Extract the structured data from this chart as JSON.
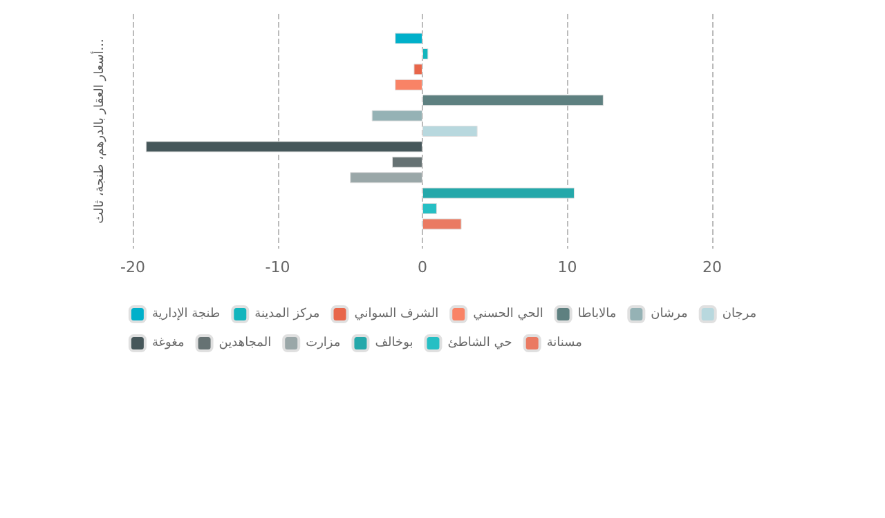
{
  "chart_data": {
    "type": "bar",
    "orientation": "horizontal",
    "ylabel": "أسعار العقار بالدرهم، طنجة، ثالث...",
    "categories": [
      null
    ],
    "series": [
      {
        "name": "طنجة الإدارية",
        "color": "#00b0ca",
        "values": [
          -1.9
        ]
      },
      {
        "name": "مركز المدينة",
        "color": "#13b5bd",
        "values": [
          0.4
        ]
      },
      {
        "name": "الشرف السواني",
        "color": "#e8664a",
        "values": [
          -0.6
        ]
      },
      {
        "name": "الحي الحسني",
        "color": "#f98366",
        "values": [
          -1.9
        ]
      },
      {
        "name": "مالاباطا",
        "color": "#5e8080",
        "values": [
          12.5
        ]
      },
      {
        "name": "مرشان",
        "color": "#95b2b5",
        "values": [
          -3.5
        ]
      },
      {
        "name": "مرجان",
        "color": "#b8d8de",
        "values": [
          3.8
        ]
      },
      {
        "name": "مغوغة",
        "color": "#46575a",
        "values": [
          -19.1
        ]
      },
      {
        "name": "المجاهدين",
        "color": "#667273",
        "values": [
          -2.1
        ]
      },
      {
        "name": "مزارت",
        "color": "#9aa7a8",
        "values": [
          -5.0
        ]
      },
      {
        "name": "بوخالف",
        "color": "#25a8aa",
        "values": [
          10.5
        ]
      },
      {
        "name": "حي الشاطئ",
        "color": "#26bfc4",
        "values": [
          1.0
        ]
      },
      {
        "name": "مسنانة",
        "color": "#ea7a62",
        "values": [
          2.7
        ]
      }
    ],
    "xlim": [
      -20,
      20
    ],
    "xticks": [
      -20,
      -10,
      0,
      10,
      20
    ],
    "grid": "x",
    "legend": "bottom"
  }
}
